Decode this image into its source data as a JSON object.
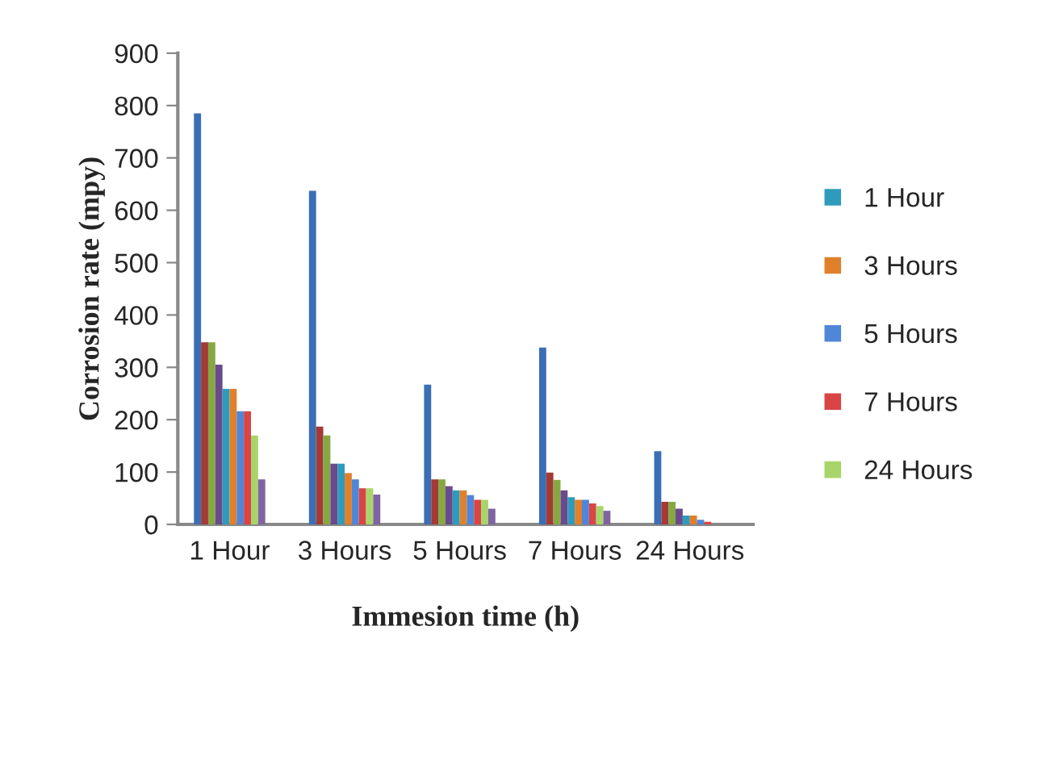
{
  "chart_data": {
    "type": "bar",
    "xlabel": "Immesion time (h)",
    "ylabel": "Corrosion rate (mpy)",
    "categories": [
      "1 Hour",
      "3 Hours",
      "5 Hours",
      "7 Hours",
      "24 Hours"
    ],
    "series": [
      {
        "color": "#3a6eb5",
        "values": [
          785,
          637,
          267,
          338,
          140
        ]
      },
      {
        "color": "#a33a36",
        "values": [
          348,
          187,
          86,
          99,
          43
        ]
      },
      {
        "color": "#86a843",
        "values": [
          348,
          170,
          86,
          85,
          43
        ]
      },
      {
        "color": "#6a4a8c",
        "values": [
          305,
          116,
          73,
          65,
          30
        ]
      },
      {
        "name": "1 Hour",
        "color": "#2e9bbd",
        "values": [
          259,
          116,
          65,
          52,
          17
        ]
      },
      {
        "name": "3 Hours",
        "color": "#e0802a",
        "values": [
          259,
          98,
          65,
          47,
          17
        ]
      },
      {
        "name": "5 Hours",
        "color": "#4f86d8",
        "values": [
          216,
          86,
          56,
          47,
          9
        ]
      },
      {
        "name": "7 Hours",
        "color": "#d94545",
        "values": [
          216,
          69,
          47,
          40,
          5
        ]
      },
      {
        "name": "24 Hours",
        "color": "#a8d56a",
        "values": [
          170,
          69,
          47,
          35,
          0
        ]
      },
      {
        "color": "#8064a2",
        "values": [
          86,
          57,
          30,
          26,
          0
        ]
      }
    ],
    "ylim": [
      0,
      900
    ],
    "yticks": [
      0,
      100,
      200,
      300,
      400,
      500,
      600,
      700,
      800,
      900
    ],
    "grid": false,
    "legend": "right"
  }
}
